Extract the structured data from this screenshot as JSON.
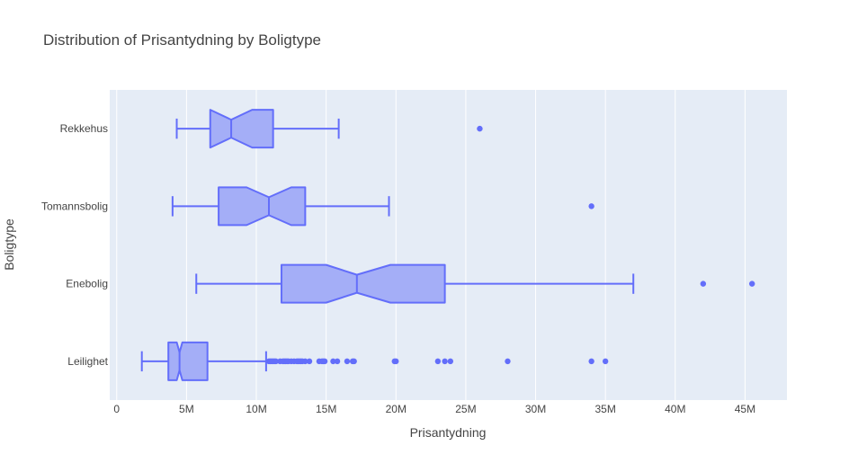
{
  "chart_data": {
    "type": "box",
    "orientation": "horizontal",
    "notched": true,
    "title": "Distribution of Prisantydning by Boligtype",
    "xlabel": "Prisantydning",
    "ylabel": "Boligtype",
    "xlim": [
      -500000,
      48000000
    ],
    "x_ticks": [
      {
        "value": 0,
        "label": "0"
      },
      {
        "value": 5000000,
        "label": "5M"
      },
      {
        "value": 10000000,
        "label": "10M"
      },
      {
        "value": 15000000,
        "label": "15M"
      },
      {
        "value": 20000000,
        "label": "20M"
      },
      {
        "value": 25000000,
        "label": "25M"
      },
      {
        "value": 30000000,
        "label": "30M"
      },
      {
        "value": 35000000,
        "label": "35M"
      },
      {
        "value": 40000000,
        "label": "40M"
      },
      {
        "value": 45000000,
        "label": "45M"
      }
    ],
    "grid": true,
    "colors": {
      "fill": "#a4aef7",
      "line": "#636efa",
      "plot_bg": "#e5ecf6",
      "grid": "#ffffff"
    },
    "categories": [
      "Rekkehus",
      "Tomannsbolig",
      "Enebolig",
      "Leilighet"
    ],
    "boxes": [
      {
        "category": "Rekkehus",
        "lowerfence": 4300000,
        "q1": 6700000,
        "median": 8200000,
        "q3": 11200000,
        "upperfence": 15900000,
        "notch_low": 6700000,
        "notch_high": 9700000,
        "outliers": [
          26000000
        ]
      },
      {
        "category": "Tomannsbolig",
        "lowerfence": 4000000,
        "q1": 7300000,
        "median": 10900000,
        "q3": 13500000,
        "upperfence": 19500000,
        "notch_low": 9300000,
        "notch_high": 12500000,
        "outliers": [
          34000000
        ]
      },
      {
        "category": "Enebolig",
        "lowerfence": 5700000,
        "q1": 11800000,
        "median": 17200000,
        "q3": 23500000,
        "upperfence": 37000000,
        "notch_low": 15000000,
        "notch_high": 19600000,
        "outliers": [
          42000000,
          45500000
        ]
      },
      {
        "category": "Leilighet",
        "lowerfence": 1800000,
        "q1": 3700000,
        "median": 4500000,
        "q3": 6500000,
        "upperfence": 10700000,
        "notch_low": 4300000,
        "notch_high": 4700000,
        "outliers": [
          10900000,
          11000000,
          11100000,
          11200000,
          11300000,
          11400000,
          11700000,
          11900000,
          12000000,
          12100000,
          12200000,
          12300000,
          12500000,
          12700000,
          12900000,
          13000000,
          13100000,
          13200000,
          13300000,
          13500000,
          13800000,
          14500000,
          14700000,
          14800000,
          14900000,
          15500000,
          15800000,
          16500000,
          16900000,
          17000000,
          19900000,
          20000000,
          23000000,
          23500000,
          23900000,
          28000000,
          34000000,
          35000000
        ]
      }
    ]
  }
}
